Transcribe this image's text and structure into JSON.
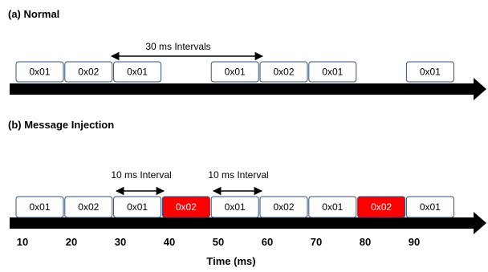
{
  "section_a": {
    "title": "(a) Normal",
    "interval_label": "30 ms Intervals",
    "messages": [
      {
        "id": "0x01",
        "start": 10,
        "injected": false
      },
      {
        "id": "0x02",
        "start": 20,
        "injected": false
      },
      {
        "id": "0x01",
        "start": 30,
        "injected": false
      },
      {
        "id": "0x01",
        "start": 50,
        "injected": false
      },
      {
        "id": "0x02",
        "start": 60,
        "injected": false
      },
      {
        "id": "0x01",
        "start": 70,
        "injected": false
      },
      {
        "id": "0x01",
        "start": 90,
        "injected": false
      }
    ]
  },
  "section_b": {
    "title": "(b) Message Injection",
    "interval_label_1": "10 ms Interval",
    "interval_label_2": "10 ms Interval",
    "messages": [
      {
        "id": "0x01",
        "start": 10,
        "injected": false
      },
      {
        "id": "0x02",
        "start": 20,
        "injected": false
      },
      {
        "id": "0x01",
        "start": 30,
        "injected": false
      },
      {
        "id": "0x02",
        "start": 40,
        "injected": true
      },
      {
        "id": "0x01",
        "start": 50,
        "injected": false
      },
      {
        "id": "0x02",
        "start": 60,
        "injected": false
      },
      {
        "id": "0x01",
        "start": 70,
        "injected": false
      },
      {
        "id": "0x02",
        "start": 80,
        "injected": true
      },
      {
        "id": "0x01",
        "start": 90,
        "injected": false
      }
    ]
  },
  "axis": {
    "ticks": [
      "10",
      "20",
      "30",
      "40",
      "50",
      "60",
      "70",
      "80",
      "90"
    ],
    "label": "Time (ms)"
  },
  "colors": {
    "box_border": "#2f4f7f",
    "injected_fill": "#ff0000",
    "normal_fill": "#ffffff",
    "timeline": "#000000"
  }
}
